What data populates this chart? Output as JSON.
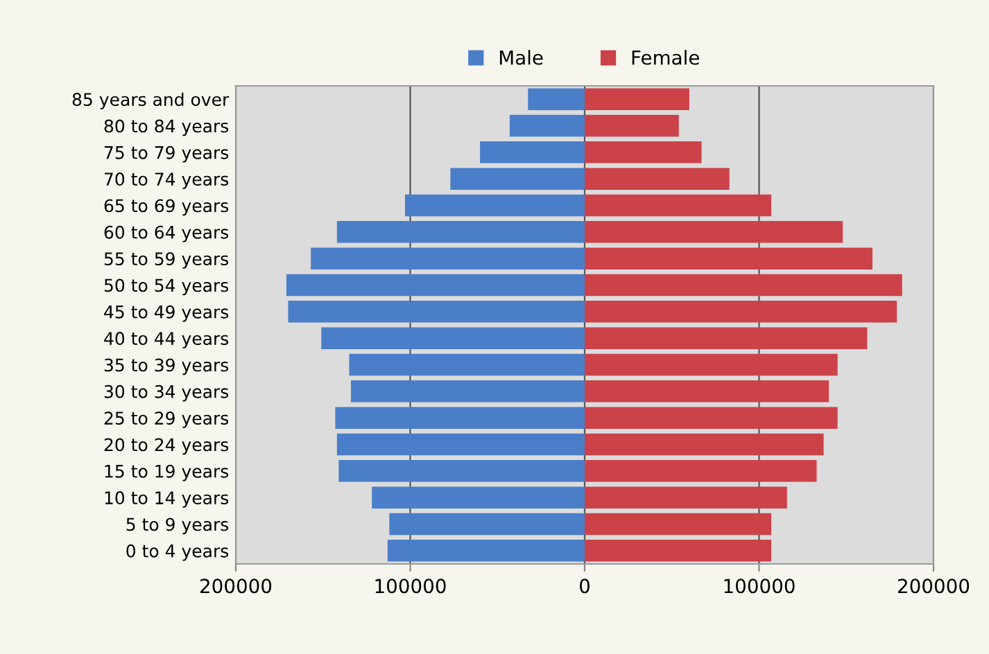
{
  "chart_data": {
    "type": "bar",
    "orientation": "horizontal",
    "categories": [
      "85 years and over",
      "80 to 84 years",
      "75 to 79 years",
      "70 to 74 years",
      "65 to 69 years",
      "60 to 64 years",
      "55 to 59 years",
      "50 to 54 years",
      "45 to 49 years",
      "40 to 44 years",
      "35 to 39 years",
      "30 to 34 years",
      "25 to 29 years",
      "20 to 24 years",
      "15 to 19 years",
      "10 to 14 years",
      "5 to 9 years",
      "0 to 4 years"
    ],
    "series": [
      {
        "name": "Male",
        "color": "#4a7ec9",
        "values": [
          -32500,
          -43000,
          -60000,
          -77000,
          -103000,
          -142000,
          -157000,
          -171000,
          -170000,
          -151000,
          -135000,
          -134000,
          -143000,
          -142000,
          -141000,
          -122000,
          -112000,
          -113000
        ]
      },
      {
        "name": "Female",
        "color": "#cc4249",
        "values": [
          60000,
          54000,
          67000,
          83000,
          107000,
          148000,
          165000,
          182000,
          179000,
          162000,
          145000,
          140000,
          145000,
          137000,
          133000,
          116000,
          107000,
          107000
        ]
      }
    ],
    "xlim": [
      -200000,
      200000
    ],
    "xticks": [
      {
        "value": -200000,
        "label": "200000"
      },
      {
        "value": -100000,
        "label": "100000"
      },
      0,
      100000,
      200000
    ],
    "grid": "x",
    "legend": "top",
    "stacked": true
  }
}
